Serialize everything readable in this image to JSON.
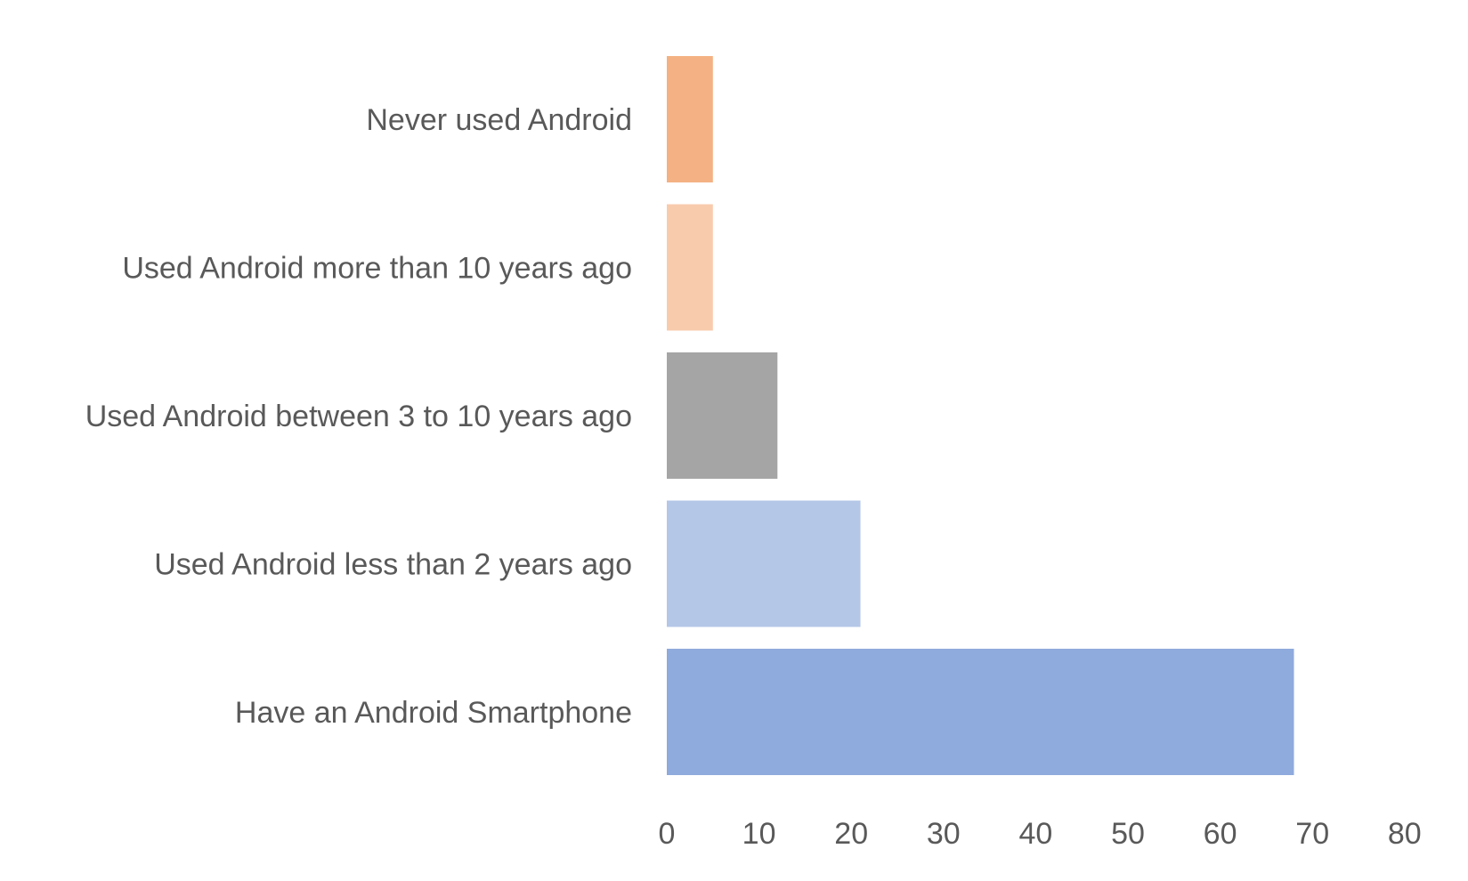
{
  "chart_data": {
    "type": "bar",
    "orientation": "horizontal",
    "title": "",
    "xlabel": "",
    "ylabel": "",
    "categories": [
      "Never used Android",
      "Used Android more than 10 years ago",
      "Used Android between 3 to 10 years ago",
      "Used Android less than 2 years ago",
      "Have an Android Smartphone"
    ],
    "values": [
      5,
      5,
      12,
      21,
      68
    ],
    "colors": [
      "#F4B183",
      "#F8CBAD",
      "#A5A5A5",
      "#B4C7E7",
      "#8FAADC"
    ],
    "xlim": [
      0,
      80
    ],
    "xticks": [
      "0",
      "10",
      "20",
      "30",
      "40",
      "50",
      "60",
      "70",
      "80"
    ],
    "grid": false,
    "legend": "none"
  }
}
